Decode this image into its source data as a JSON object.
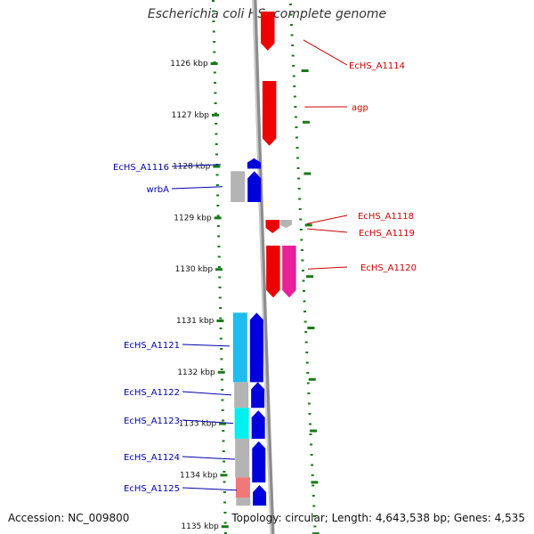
{
  "title": "Escherichia coli HS, complete genome",
  "footer": {
    "accession": "Accession: NC_009800",
    "summary": "Topology: circular; Length: 4,643,538 bp; Genes: 4,535"
  },
  "colors": {
    "backbone": "#8c8c8c",
    "dotted_track": "#1a7a1a",
    "reverse_label": "#0000aa",
    "forward_label": "#cc0000"
  },
  "scale_ticks": [
    {
      "kbp": 1126,
      "label": "1126 kbp"
    },
    {
      "kbp": 1127,
      "label": "1127 kbp"
    },
    {
      "kbp": 1128,
      "label": "1128 kbp"
    },
    {
      "kbp": 1129,
      "label": "1129 kbp"
    },
    {
      "kbp": 1130,
      "label": "1130 kbp"
    },
    {
      "kbp": 1131,
      "label": "1131 kbp"
    },
    {
      "kbp": 1132,
      "label": "1132 kbp"
    },
    {
      "kbp": 1133,
      "label": "1133 kbp"
    },
    {
      "kbp": 1134,
      "label": "1134 kbp"
    },
    {
      "kbp": 1135,
      "label": "1135 kbp"
    }
  ],
  "forward_genes": [
    {
      "name": "EcHS_A1114",
      "start_kbp": 1125.0,
      "end_kbp": 1125.75,
      "color": "#ee0000"
    },
    {
      "name": "agp",
      "start_kbp": 1126.35,
      "end_kbp": 1127.6,
      "color": "#ee0000"
    },
    {
      "name": "EcHS_A1118",
      "start_kbp": 1129.05,
      "end_kbp": 1129.3,
      "color": "#ee0000"
    },
    {
      "name": "EcHS_A1119",
      "start_kbp": 1129.05,
      "end_kbp": 1129.2,
      "color": "#b4b4b4"
    },
    {
      "name": "EcHS_A1120",
      "start_kbp": 1129.55,
      "end_kbp": 1130.55,
      "color": "#ee0000"
    },
    {
      "name": "EcHS_A1120b",
      "start_kbp": 1129.55,
      "end_kbp": 1130.55,
      "color": "#e8209a"
    }
  ],
  "reverse_genes": [
    {
      "name": "EcHS_A1116",
      "start_kbp": 1127.85,
      "end_kbp": 1128.05,
      "color": "#0000dd"
    },
    {
      "name": "wrbA",
      "start_kbp": 1128.1,
      "end_kbp": 1128.7,
      "color": "#0000dd"
    },
    {
      "name": "EcHS_A1121",
      "start_kbp": 1130.85,
      "end_kbp": 1132.2,
      "color": "#0000dd"
    },
    {
      "name": "EcHS_A1122",
      "start_kbp": 1132.2,
      "end_kbp": 1132.7,
      "color": "#0000dd"
    },
    {
      "name": "EcHS_A1123",
      "start_kbp": 1132.75,
      "end_kbp": 1133.3,
      "color": "#0000dd"
    },
    {
      "name": "EcHS_A1124",
      "start_kbp": 1133.35,
      "end_kbp": 1134.15,
      "color": "#0000dd"
    },
    {
      "name": "EcHS_A1125",
      "start_kbp": 1134.2,
      "end_kbp": 1134.6,
      "color": "#0000dd"
    }
  ],
  "cog_boxes": [
    {
      "start_kbp": 1128.1,
      "end_kbp": 1128.7,
      "color": "#b4b4b4"
    },
    {
      "start_kbp": 1130.85,
      "end_kbp": 1132.2,
      "color": "#1fbcf0"
    },
    {
      "start_kbp": 1132.2,
      "end_kbp": 1132.7,
      "color": "#b4b4b4"
    },
    {
      "start_kbp": 1132.7,
      "end_kbp": 1133.3,
      "color": "#00f0f0"
    },
    {
      "start_kbp": 1133.3,
      "end_kbp": 1134.05,
      "color": "#b4b4b4"
    },
    {
      "start_kbp": 1134.05,
      "end_kbp": 1134.45,
      "color": "#f07878"
    },
    {
      "start_kbp": 1134.45,
      "end_kbp": 1134.6,
      "color": "#b4b4b4"
    }
  ],
  "labels": {
    "forward": [
      {
        "text": "EcHS_A1114",
        "gene_kbp": 1125.55
      },
      {
        "text": "agp",
        "gene_kbp": 1126.85
      },
      {
        "text": "EcHS_A1118",
        "gene_kbp": 1129.12
      },
      {
        "text": "EcHS_A1119",
        "gene_kbp": 1129.22
      },
      {
        "text": "EcHS_A1120",
        "gene_kbp": 1130.0
      }
    ],
    "reverse": [
      {
        "text": "EcHS_A1116",
        "gene_kbp": 1127.97
      },
      {
        "text": "wrbA",
        "gene_kbp": 1128.4
      },
      {
        "text": "EcHS_A1121",
        "gene_kbp": 1131.5
      },
      {
        "text": "EcHS_A1122",
        "gene_kbp": 1132.45
      },
      {
        "text": "EcHS_A1123",
        "gene_kbp": 1133.0
      },
      {
        "text": "EcHS_A1124",
        "gene_kbp": 1133.7
      },
      {
        "text": "EcHS_A1125",
        "gene_kbp": 1134.3
      }
    ]
  }
}
